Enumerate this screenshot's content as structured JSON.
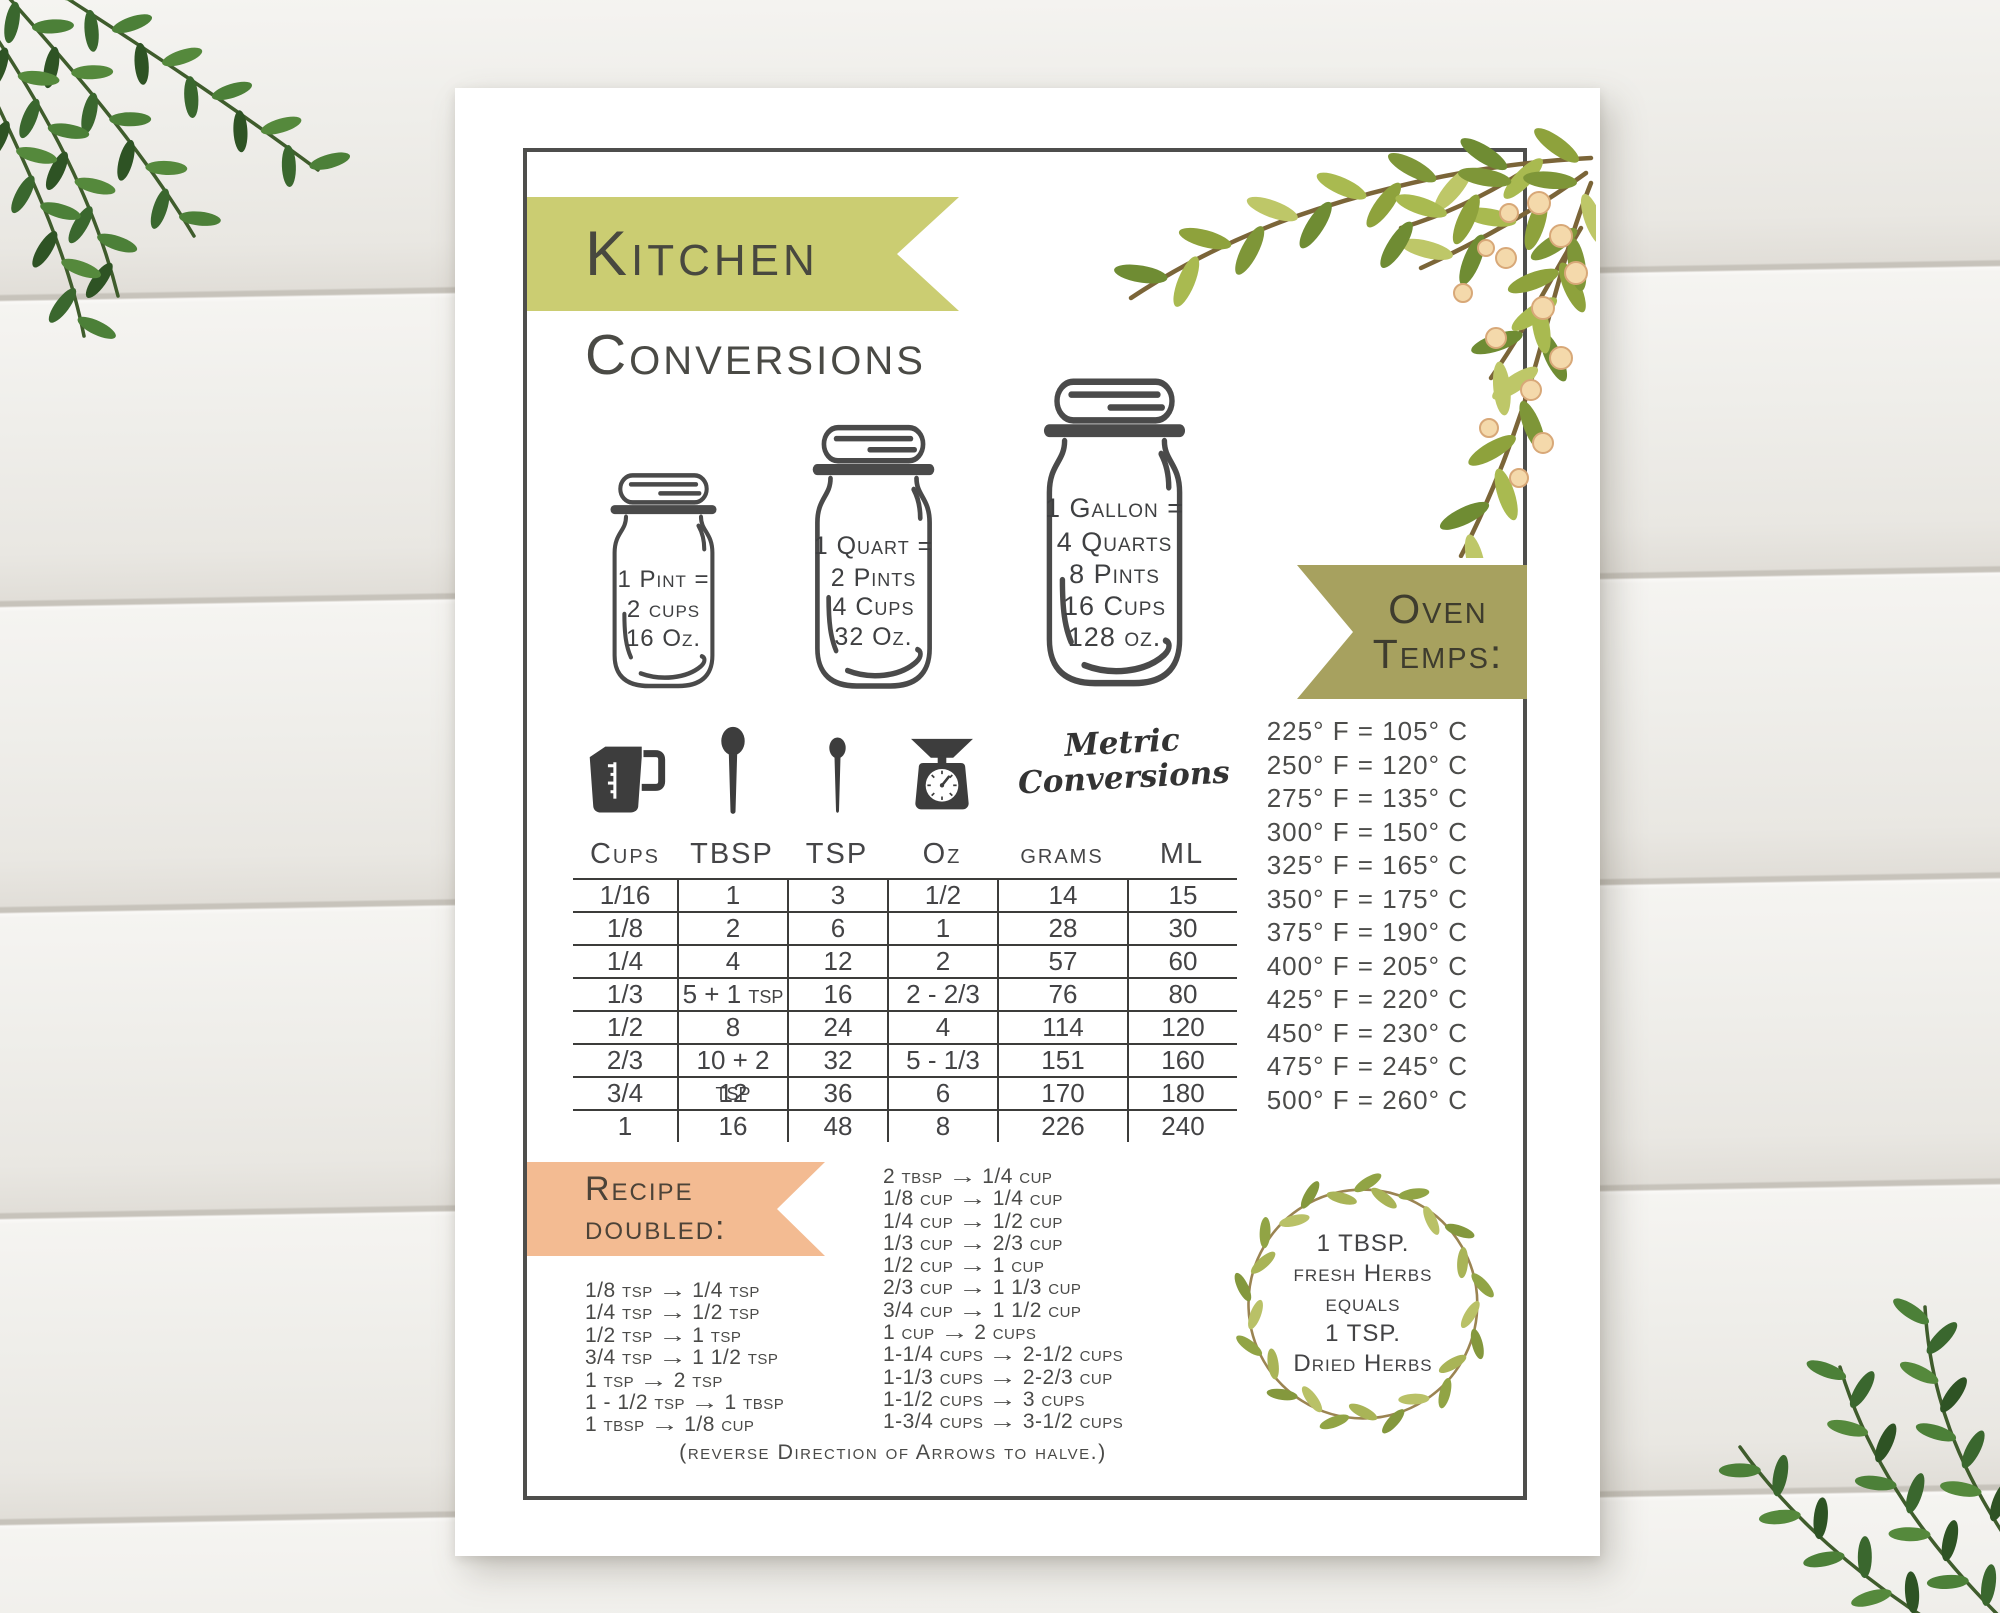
{
  "poster": {
    "title_line1": "Kitchen",
    "title_line2": "Conversions",
    "footer_note": "(reverse Direction of Arrows to halve.)"
  },
  "jars": [
    {
      "title": "1 Pint =",
      "lines": [
        "2 cups",
        "16 Oz."
      ]
    },
    {
      "title": "1 Quart =",
      "lines": [
        "2 Pints",
        "4 Cups",
        "32 Oz."
      ]
    },
    {
      "title": "1 Gallon =",
      "lines": [
        "4 Quarts",
        "8 Pints",
        "16 Cups",
        "128 oz."
      ]
    }
  ],
  "oven_temps": {
    "banner_line1": "Oven",
    "banner_line2": "Temps:",
    "rows": [
      "225° F = 105° C",
      "250° F = 120° C",
      "275° F = 135° C",
      "300° F = 150° C",
      "325° F = 165° C",
      "350° F = 175° C",
      "375° F = 190° C",
      "400° F = 205° C",
      "425° F = 220° C",
      "450° F = 230° C",
      "475° F = 245° C",
      "500° F = 260° C"
    ]
  },
  "metric_table": {
    "script_title_line1": "Metric",
    "script_title_line2": "Conversions",
    "icons": [
      "measuring-cup",
      "tablespoon",
      "teaspoon",
      "kitchen-scale"
    ],
    "headers": [
      "Cups",
      "TBSP",
      "TSP",
      "Oz",
      "grams",
      "ML"
    ],
    "rows": [
      [
        "1/16",
        "1",
        "3",
        "1/2",
        "14",
        "15"
      ],
      [
        "1/8",
        "2",
        "6",
        "1",
        "28",
        "30"
      ],
      [
        "1/4",
        "4",
        "12",
        "2",
        "57",
        "60"
      ],
      [
        "1/3",
        "5 + 1 tsp",
        "16",
        "2 - 2/3",
        "76",
        "80"
      ],
      [
        "1/2",
        "8",
        "24",
        "4",
        "114",
        "120"
      ],
      [
        "2/3",
        "10 + 2 tsp",
        "32",
        "5 - 1/3",
        "151",
        "160"
      ],
      [
        "3/4",
        "12",
        "36",
        "6",
        "170",
        "180"
      ],
      [
        "1",
        "16",
        "48",
        "8",
        "226",
        "240"
      ]
    ]
  },
  "recipe_doubled": {
    "banner_line1": "Recipe",
    "banner_line2": "doubled:",
    "arrow_glyph": "→",
    "left_column": [
      {
        "from": "1/8 tsp",
        "to": "1/4 tsp"
      },
      {
        "from": "1/4 tsp",
        "to": "1/2 tsp"
      },
      {
        "from": "1/2 tsp",
        "to": "1 tsp"
      },
      {
        "from": "3/4 tsp",
        "to": "1 1/2 tsp"
      },
      {
        "from": "1 tsp",
        "to": "2 tsp"
      },
      {
        "from": "1 - 1/2 tsp",
        "to": "1 tbsp"
      },
      {
        "from": "1 tbsp",
        "to": "1/8 cup"
      }
    ],
    "middle_column": [
      {
        "from": "2 tbsp",
        "to": "1/4 cup"
      },
      {
        "from": "1/8 cup",
        "to": "1/4 cup"
      },
      {
        "from": "1/4 cup",
        "to": "1/2 cup"
      },
      {
        "from": "1/3 cup",
        "to": "2/3 cup"
      },
      {
        "from": "1/2 cup",
        "to": "1 cup"
      },
      {
        "from": "2/3 cup",
        "to": "1 1/3 cup"
      },
      {
        "from": "3/4 cup",
        "to": "1 1/2 cup"
      },
      {
        "from": "1 cup",
        "to": "2 cups"
      },
      {
        "from": "1-1/4 cups",
        "to": "2-1/2 cups"
      },
      {
        "from": "1-1/3 cups",
        "to": "2-2/3 cup"
      },
      {
        "from": "1-1/2 cups",
        "to": "3 cups"
      },
      {
        "from": "1-3/4 cups",
        "to": "3-1/2 cups"
      }
    ]
  },
  "herb_note": {
    "lines": [
      "1 TBSP.",
      "fresh Herbs",
      "equals",
      "1 TSP.",
      "Dried Herbs"
    ]
  },
  "colors": {
    "banner_green": "#cbcd72",
    "banner_olive": "#a7a15f",
    "banner_peach": "#f3bb92",
    "ink": "#474744",
    "frame": "#4e4e4c",
    "leaf_olive": "#93a743",
    "leaf_dark": "#3f6c30",
    "berry": "#f4d9ab"
  }
}
